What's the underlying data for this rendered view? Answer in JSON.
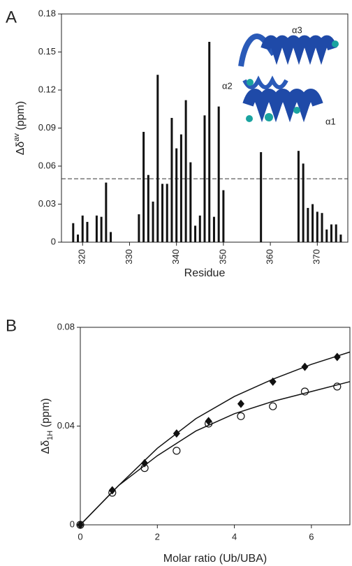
{
  "chart_data": [
    {
      "type": "bar",
      "panel": "A",
      "x_label": "Residue",
      "y_label": [
        "Δδ",
        "av",
        " (ppm)"
      ],
      "x": [
        318,
        319,
        320,
        321,
        323,
        324,
        325,
        326,
        332,
        333,
        334,
        335,
        336,
        337,
        338,
        339,
        340,
        341,
        342,
        343,
        344,
        345,
        346,
        347,
        348,
        349,
        350,
        358,
        366,
        367,
        368,
        369,
        370,
        371,
        372,
        373,
        374,
        375
      ],
      "values": [
        0.015,
        0.006,
        0.021,
        0.016,
        0.021,
        0.02,
        0.047,
        0.008,
        0.022,
        0.087,
        0.053,
        0.032,
        0.132,
        0.046,
        0.046,
        0.098,
        0.074,
        0.085,
        0.112,
        0.063,
        0.013,
        0.021,
        0.1,
        0.158,
        0.02,
        0.107,
        0.041,
        0.071,
        0.072,
        0.062,
        0.027,
        0.03,
        0.024,
        0.023,
        0.01,
        0.014,
        0.014,
        0.006
      ],
      "color": "#111111",
      "xlim": [
        315.5,
        376.5
      ],
      "xticks": [
        320,
        330,
        340,
        350,
        360,
        370
      ],
      "ylim": [
        0,
        0.18
      ],
      "yticks": [
        0,
        0.03,
        0.06,
        0.09,
        0.12,
        0.15,
        0.18
      ],
      "reference_line": 0.05,
      "annotations": [
        "α3",
        "α2",
        "α1"
      ]
    },
    {
      "type": "scatter",
      "panel": "B",
      "x_label": "Molar ratio (Ub/UBA)",
      "y_label": [
        "Δδ",
        "1H",
        " (ppm)"
      ],
      "series": [
        {
          "marker": "diamond",
          "color": "#111111",
          "x": [
            0,
            0.83,
            1.67,
            2.5,
            3.33,
            4.17,
            5,
            5.83,
            6.67
          ],
          "values": [
            0,
            0.014,
            0.025,
            0.037,
            0.042,
            0.049,
            0.058,
            0.064,
            0.068
          ]
        },
        {
          "marker": "circle",
          "color": "#111111",
          "x": [
            0,
            0.83,
            1.67,
            2.5,
            3.33,
            4.17,
            5,
            5.83,
            6.67
          ],
          "values": [
            0,
            0.013,
            0.023,
            0.03,
            0.041,
            0.044,
            0.048,
            0.054,
            0.056
          ]
        },
        {
          "marker": "line",
          "color": "#111111",
          "x": [
            0,
            1,
            2,
            3,
            4,
            5,
            6,
            7
          ],
          "values": [
            0,
            0.016,
            0.031,
            0.043,
            0.052,
            0.059,
            0.065,
            0.07
          ]
        },
        {
          "marker": "line",
          "color": "#111111",
          "x": [
            0,
            1,
            2,
            3,
            4,
            5,
            6,
            7
          ],
          "values": [
            0,
            0.016,
            0.028,
            0.038,
            0.045,
            0.05,
            0.054,
            0.058
          ]
        }
      ],
      "xlim": [
        0,
        7
      ],
      "xticks": [
        0,
        2,
        4,
        6
      ],
      "ylim": [
        0,
        0.08
      ],
      "yticks": [
        0,
        0.04,
        0.08
      ]
    }
  ]
}
